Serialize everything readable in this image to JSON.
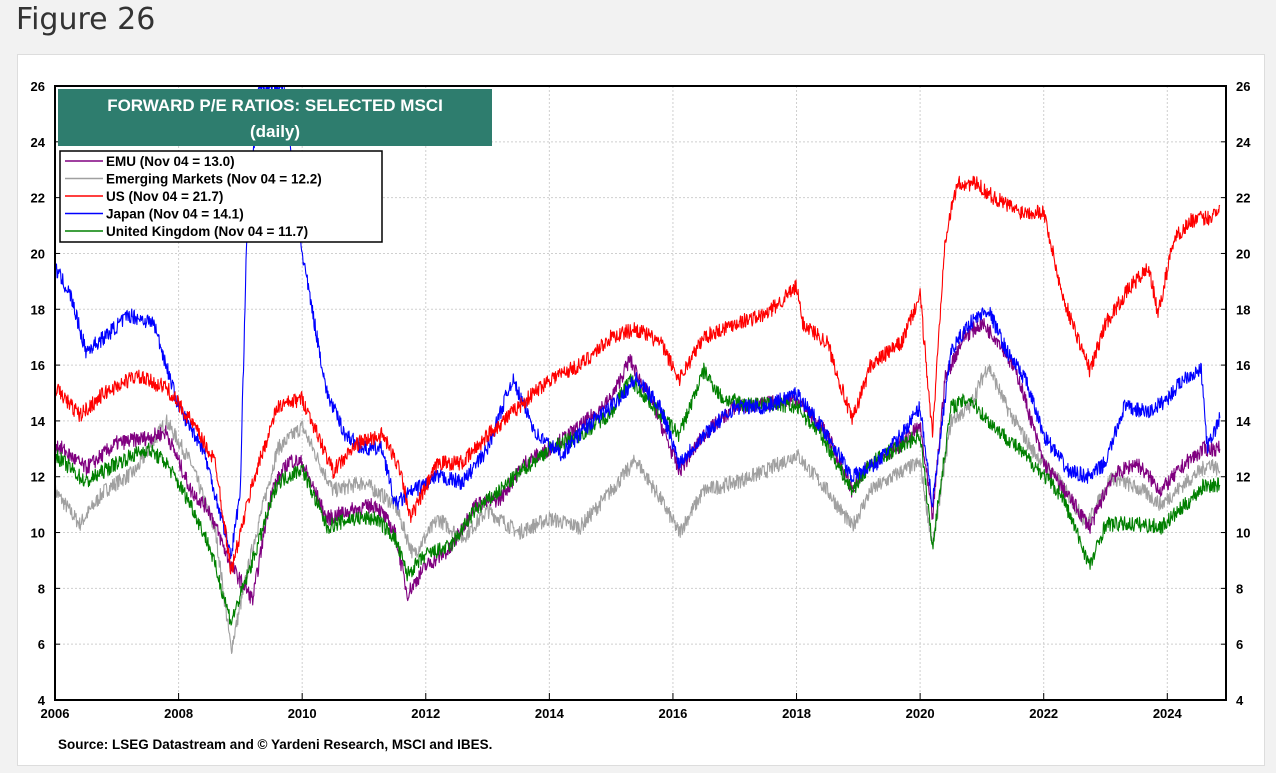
{
  "page": {
    "heading": "Figure 26"
  },
  "chart_data": {
    "type": "line",
    "title": "FORWARD P/E RATIOS: SELECTED MSCI",
    "subtitle": "(daily)",
    "source": "Source: LSEG Datastream and © Yardeni Research, MSCI and IBES.",
    "xlim": [
      2006.0,
      2024.95
    ],
    "ylim": [
      4,
      26
    ],
    "x_ticks": [
      2006,
      2008,
      2010,
      2012,
      2014,
      2016,
      2018,
      2020,
      2022,
      2024
    ],
    "y_ticks": [
      4,
      6,
      8,
      10,
      12,
      14,
      16,
      18,
      20,
      22,
      24,
      26
    ],
    "grid": true,
    "legend_position": "top-left",
    "title_box_color": "#2e7d6e",
    "series": [
      {
        "name": "EMU (Nov 04 = 13.0)",
        "color": "#800080",
        "points": [
          [
            2006.0,
            13.2
          ],
          [
            2006.5,
            12.3
          ],
          [
            2007.0,
            13.2
          ],
          [
            2007.5,
            13.4
          ],
          [
            2007.8,
            13.6
          ],
          [
            2008.2,
            11.5
          ],
          [
            2008.5,
            10.8
          ],
          [
            2008.85,
            8.8
          ],
          [
            2009.2,
            7.6
          ],
          [
            2009.5,
            11.5
          ],
          [
            2009.8,
            12.6
          ],
          [
            2010.0,
            12.5
          ],
          [
            2010.4,
            10.5
          ],
          [
            2010.8,
            10.8
          ],
          [
            2011.2,
            11.0
          ],
          [
            2011.5,
            10.0
          ],
          [
            2011.7,
            7.8
          ],
          [
            2012.0,
            8.8
          ],
          [
            2012.4,
            9.4
          ],
          [
            2012.8,
            11.0
          ],
          [
            2013.2,
            11.2
          ],
          [
            2013.6,
            12.5
          ],
          [
            2014.0,
            13.0
          ],
          [
            2014.5,
            13.8
          ],
          [
            2015.0,
            14.8
          ],
          [
            2015.3,
            16.2
          ],
          [
            2015.7,
            14.5
          ],
          [
            2016.1,
            12.2
          ],
          [
            2016.5,
            13.5
          ],
          [
            2017.0,
            14.5
          ],
          [
            2017.5,
            14.6
          ],
          [
            2018.0,
            14.8
          ],
          [
            2018.5,
            13.5
          ],
          [
            2018.9,
            11.5
          ],
          [
            2019.2,
            12.5
          ],
          [
            2019.6,
            13.0
          ],
          [
            2020.0,
            13.8
          ],
          [
            2020.2,
            10.5
          ],
          [
            2020.4,
            15.5
          ],
          [
            2020.7,
            17.0
          ],
          [
            2021.0,
            17.5
          ],
          [
            2021.3,
            16.8
          ],
          [
            2021.6,
            15.5
          ],
          [
            2022.0,
            12.5
          ],
          [
            2022.4,
            11.3
          ],
          [
            2022.75,
            10.2
          ],
          [
            2023.1,
            12.0
          ],
          [
            2023.5,
            12.5
          ],
          [
            2023.9,
            11.5
          ],
          [
            2024.3,
            12.5
          ],
          [
            2024.6,
            13.0
          ],
          [
            2024.85,
            13.0
          ]
        ]
      },
      {
        "name": "Emerging Markets (Nov 04 = 12.2)",
        "color": "#a0a0a0",
        "points": [
          [
            2006.0,
            11.5
          ],
          [
            2006.4,
            10.3
          ],
          [
            2006.8,
            11.5
          ],
          [
            2007.3,
            12.2
          ],
          [
            2007.8,
            14.0
          ],
          [
            2008.2,
            12.5
          ],
          [
            2008.6,
            10.0
          ],
          [
            2008.85,
            5.8
          ],
          [
            2009.2,
            9.5
          ],
          [
            2009.6,
            13.0
          ],
          [
            2010.0,
            13.8
          ],
          [
            2010.5,
            11.5
          ],
          [
            2011.0,
            11.8
          ],
          [
            2011.5,
            11.0
          ],
          [
            2011.8,
            9.2
          ],
          [
            2012.2,
            10.5
          ],
          [
            2012.6,
            9.8
          ],
          [
            2013.0,
            10.8
          ],
          [
            2013.5,
            10.0
          ],
          [
            2014.0,
            10.5
          ],
          [
            2014.5,
            10.2
          ],
          [
            2015.0,
            11.5
          ],
          [
            2015.4,
            12.6
          ],
          [
            2015.8,
            11.2
          ],
          [
            2016.1,
            10.0
          ],
          [
            2016.5,
            11.5
          ],
          [
            2017.0,
            11.8
          ],
          [
            2017.5,
            12.2
          ],
          [
            2018.0,
            12.8
          ],
          [
            2018.5,
            11.5
          ],
          [
            2018.9,
            10.2
          ],
          [
            2019.2,
            11.5
          ],
          [
            2019.7,
            12.2
          ],
          [
            2020.0,
            12.5
          ],
          [
            2020.2,
            9.5
          ],
          [
            2020.5,
            14.0
          ],
          [
            2020.8,
            14.5
          ],
          [
            2021.1,
            16.0
          ],
          [
            2021.4,
            14.5
          ],
          [
            2021.8,
            13.0
          ],
          [
            2022.2,
            12.0
          ],
          [
            2022.7,
            10.3
          ],
          [
            2023.1,
            12.0
          ],
          [
            2023.6,
            11.5
          ],
          [
            2023.9,
            11.0
          ],
          [
            2024.3,
            11.8
          ],
          [
            2024.7,
            12.5
          ],
          [
            2024.85,
            12.2
          ]
        ]
      },
      {
        "name": "US  (Nov 04 = 21.7)",
        "color": "#ff0000",
        "points": [
          [
            2006.0,
            15.2
          ],
          [
            2006.4,
            14.2
          ],
          [
            2006.8,
            15.0
          ],
          [
            2007.3,
            15.6
          ],
          [
            2007.8,
            15.2
          ],
          [
            2008.2,
            14.0
          ],
          [
            2008.6,
            12.5
          ],
          [
            2008.85,
            8.6
          ],
          [
            2009.2,
            11.8
          ],
          [
            2009.6,
            14.5
          ],
          [
            2010.0,
            14.8
          ],
          [
            2010.5,
            12.2
          ],
          [
            2010.9,
            13.2
          ],
          [
            2011.3,
            13.5
          ],
          [
            2011.6,
            12.2
          ],
          [
            2011.75,
            10.5
          ],
          [
            2012.2,
            12.5
          ],
          [
            2012.6,
            12.5
          ],
          [
            2013.0,
            13.5
          ],
          [
            2013.5,
            14.5
          ],
          [
            2014.0,
            15.5
          ],
          [
            2014.5,
            16.0
          ],
          [
            2015.0,
            17.0
          ],
          [
            2015.4,
            17.3
          ],
          [
            2015.8,
            16.8
          ],
          [
            2016.1,
            15.5
          ],
          [
            2016.5,
            17.0
          ],
          [
            2017.0,
            17.5
          ],
          [
            2017.5,
            17.8
          ],
          [
            2018.0,
            18.8
          ],
          [
            2018.1,
            17.5
          ],
          [
            2018.5,
            16.8
          ],
          [
            2018.9,
            14.0
          ],
          [
            2019.2,
            16.0
          ],
          [
            2019.7,
            16.8
          ],
          [
            2020.0,
            18.5
          ],
          [
            2020.2,
            13.5
          ],
          [
            2020.4,
            20.5
          ],
          [
            2020.6,
            22.5
          ],
          [
            2020.9,
            22.5
          ],
          [
            2021.2,
            22.0
          ],
          [
            2021.6,
            21.5
          ],
          [
            2022.0,
            21.5
          ],
          [
            2022.3,
            18.5
          ],
          [
            2022.75,
            15.8
          ],
          [
            2023.0,
            17.5
          ],
          [
            2023.4,
            18.8
          ],
          [
            2023.7,
            19.5
          ],
          [
            2023.85,
            17.8
          ],
          [
            2024.1,
            20.5
          ],
          [
            2024.4,
            21.2
          ],
          [
            2024.7,
            21.3
          ],
          [
            2024.85,
            21.7
          ]
        ]
      },
      {
        "name": "Japan (Nov 04 = 14.1)",
        "color": "#0000ff",
        "points": [
          [
            2006.0,
            19.5
          ],
          [
            2006.25,
            18.5
          ],
          [
            2006.5,
            16.5
          ],
          [
            2006.8,
            17.0
          ],
          [
            2007.2,
            17.8
          ],
          [
            2007.6,
            17.5
          ],
          [
            2008.0,
            14.5
          ],
          [
            2008.4,
            13.0
          ],
          [
            2008.85,
            9.2
          ],
          [
            2009.0,
            11.5
          ],
          [
            2009.1,
            20.5
          ],
          [
            2009.3,
            26.0
          ],
          [
            2009.7,
            26.0
          ],
          [
            2010.0,
            20.0
          ],
          [
            2010.2,
            17.5
          ],
          [
            2010.4,
            15.0
          ],
          [
            2010.7,
            13.5
          ],
          [
            2011.0,
            13.0
          ],
          [
            2011.3,
            13.0
          ],
          [
            2011.5,
            11.0
          ],
          [
            2011.8,
            11.5
          ],
          [
            2012.2,
            12.0
          ],
          [
            2012.6,
            11.8
          ],
          [
            2013.0,
            13.0
          ],
          [
            2013.4,
            15.5
          ],
          [
            2013.8,
            13.5
          ],
          [
            2014.2,
            12.8
          ],
          [
            2014.6,
            13.8
          ],
          [
            2015.0,
            14.5
          ],
          [
            2015.4,
            15.5
          ],
          [
            2015.8,
            14.5
          ],
          [
            2016.1,
            12.5
          ],
          [
            2016.5,
            13.5
          ],
          [
            2017.0,
            14.5
          ],
          [
            2017.5,
            14.5
          ],
          [
            2018.0,
            15.0
          ],
          [
            2018.5,
            13.5
          ],
          [
            2018.9,
            12.0
          ],
          [
            2019.3,
            12.5
          ],
          [
            2019.7,
            13.5
          ],
          [
            2020.0,
            14.5
          ],
          [
            2020.2,
            11.0
          ],
          [
            2020.5,
            16.5
          ],
          [
            2020.8,
            17.5
          ],
          [
            2021.1,
            18.0
          ],
          [
            2021.4,
            16.5
          ],
          [
            2021.7,
            15.5
          ],
          [
            2022.0,
            13.5
          ],
          [
            2022.4,
            12.2
          ],
          [
            2022.75,
            12.0
          ],
          [
            2023.0,
            12.5
          ],
          [
            2023.3,
            14.5
          ],
          [
            2023.7,
            14.3
          ],
          [
            2024.0,
            14.8
          ],
          [
            2024.3,
            15.6
          ],
          [
            2024.55,
            15.8
          ],
          [
            2024.65,
            13.0
          ],
          [
            2024.85,
            14.1
          ]
        ]
      },
      {
        "name": "United Kingdom (Nov 04 = 11.7)",
        "color": "#008000",
        "points": [
          [
            2006.0,
            12.8
          ],
          [
            2006.5,
            11.8
          ],
          [
            2007.0,
            12.5
          ],
          [
            2007.5,
            13.0
          ],
          [
            2007.8,
            12.5
          ],
          [
            2008.2,
            11.0
          ],
          [
            2008.5,
            9.5
          ],
          [
            2008.85,
            6.8
          ],
          [
            2009.2,
            9.0
          ],
          [
            2009.6,
            11.8
          ],
          [
            2010.0,
            12.3
          ],
          [
            2010.4,
            10.2
          ],
          [
            2010.8,
            10.5
          ],
          [
            2011.2,
            10.5
          ],
          [
            2011.5,
            9.8
          ],
          [
            2011.7,
            8.5
          ],
          [
            2012.0,
            9.2
          ],
          [
            2012.4,
            9.5
          ],
          [
            2012.8,
            10.8
          ],
          [
            2013.2,
            11.5
          ],
          [
            2013.6,
            12.3
          ],
          [
            2014.0,
            13.0
          ],
          [
            2014.5,
            13.5
          ],
          [
            2015.0,
            14.3
          ],
          [
            2015.3,
            15.5
          ],
          [
            2015.7,
            14.5
          ],
          [
            2016.1,
            13.5
          ],
          [
            2016.5,
            15.8
          ],
          [
            2016.8,
            14.8
          ],
          [
            2017.2,
            14.6
          ],
          [
            2017.6,
            14.6
          ],
          [
            2018.0,
            14.5
          ],
          [
            2018.4,
            13.5
          ],
          [
            2018.9,
            11.5
          ],
          [
            2019.2,
            12.5
          ],
          [
            2019.6,
            13.0
          ],
          [
            2020.0,
            13.5
          ],
          [
            2020.2,
            9.5
          ],
          [
            2020.5,
            14.5
          ],
          [
            2020.8,
            14.8
          ],
          [
            2021.1,
            14.0
          ],
          [
            2021.5,
            13.2
          ],
          [
            2021.9,
            12.3
          ],
          [
            2022.3,
            11.3
          ],
          [
            2022.75,
            8.8
          ],
          [
            2023.0,
            10.3
          ],
          [
            2023.5,
            10.3
          ],
          [
            2023.9,
            10.2
          ],
          [
            2024.3,
            11.0
          ],
          [
            2024.6,
            11.7
          ],
          [
            2024.85,
            11.7
          ]
        ]
      }
    ]
  }
}
